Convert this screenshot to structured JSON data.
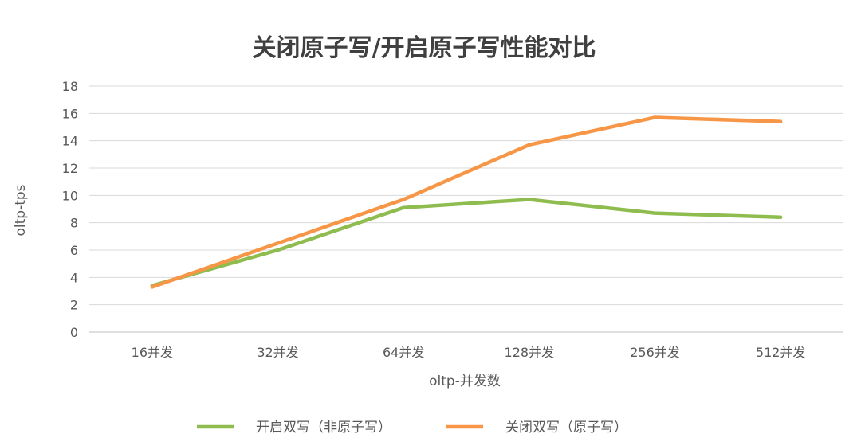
{
  "chart_data": {
    "type": "line",
    "title": "关闭原子写/开启原子写性能对比",
    "xlabel": "oltp-并发数",
    "ylabel": "oltp-tps",
    "categories": [
      "16并发",
      "32并发",
      "64并发",
      "128并发",
      "256并发",
      "512并发"
    ],
    "ylim": [
      0,
      18
    ],
    "yticks": [
      0,
      2,
      4,
      6,
      8,
      10,
      12,
      14,
      16,
      18
    ],
    "grid": true,
    "legend_position": "bottom",
    "series": [
      {
        "name": "开启双写（非原子写）",
        "color": "#8fbc4f",
        "values": [
          3.4,
          6.0,
          9.1,
          9.7,
          8.7,
          8.4
        ]
      },
      {
        "name": "关闭双写（原子写）",
        "color": "#f79646",
        "values": [
          3.3,
          6.5,
          9.7,
          13.7,
          15.7,
          15.4
        ]
      }
    ]
  }
}
